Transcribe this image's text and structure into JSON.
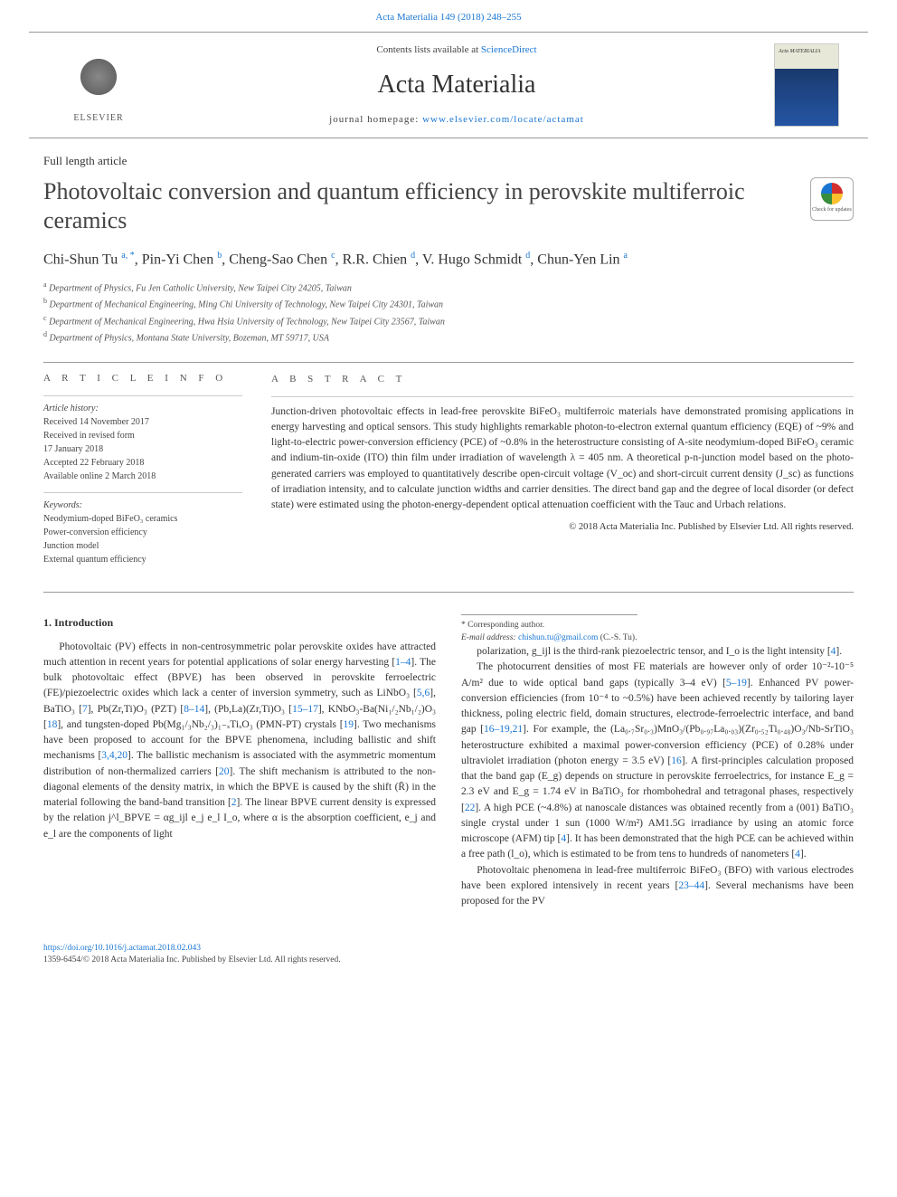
{
  "citation": "Acta Materialia 149 (2018) 248–255",
  "header": {
    "contents_prefix": "Contents lists available at ",
    "contents_link": "ScienceDirect",
    "journal_name": "Acta Materialia",
    "homepage_prefix": "journal homepage: ",
    "homepage_url": "www.elsevier.com/locate/actamat",
    "publisher": "ELSEVIER"
  },
  "article": {
    "type": "Full length article",
    "title": "Photovoltaic conversion and quantum efficiency in perovskite multiferroic ceramics",
    "crossmark_label": "Check for updates",
    "authors_html": "Chi-Shun Tu <sup>a, *</sup>, Pin-Yi Chen <sup>b</sup>, Cheng-Sao Chen <sup>c</sup>, R.R. Chien <sup>d</sup>, V. Hugo Schmidt <sup>d</sup>, Chun-Yen Lin <sup>a</sup>",
    "affiliations": [
      {
        "sup": "a",
        "text": "Department of Physics, Fu Jen Catholic University, New Taipei City 24205, Taiwan"
      },
      {
        "sup": "b",
        "text": "Department of Mechanical Engineering, Ming Chi University of Technology, New Taipei City 24301, Taiwan"
      },
      {
        "sup": "c",
        "text": "Department of Mechanical Engineering, Hwa Hsia University of Technology, New Taipei City 23567, Taiwan"
      },
      {
        "sup": "d",
        "text": "Department of Physics, Montana State University, Bozeman, MT 59717, USA"
      }
    ]
  },
  "info": {
    "label": "A R T I C L E   I N F O",
    "history_label": "Article history:",
    "history": [
      "Received 14 November 2017",
      "Received in revised form",
      "17 January 2018",
      "Accepted 22 February 2018",
      "Available online 2 March 2018"
    ],
    "keywords_label": "Keywords:",
    "keywords": [
      "Neodymium-doped BiFeO₃ ceramics",
      "Power-conversion efficiency",
      "Junction model",
      "External quantum efficiency"
    ]
  },
  "abstract": {
    "label": "A B S T R A C T",
    "text": "Junction-driven photovoltaic effects in lead-free perovskite BiFeO₃ multiferroic materials have demonstrated promising applications in energy harvesting and optical sensors. This study highlights remarkable photon-to-electron external quantum efficiency (EQE) of ~9% and light-to-electric power-conversion efficiency (PCE) of ~0.8% in the heterostructure consisting of A-site neodymium-doped BiFeO₃ ceramic and indium-tin-oxide (ITO) thin film under irradiation of wavelength λ = 405 nm. A theoretical p-n-junction model based on the photo-generated carriers was employed to quantitatively describe open-circuit voltage (V_oc) and short-circuit current density (J_sc) as functions of irradiation intensity, and to calculate junction widths and carrier densities. The direct band gap and the degree of local disorder (or defect state) were estimated using the photon-energy-dependent optical attenuation coefficient with the Tauc and Urbach relations.",
    "copyright": "© 2018 Acta Materialia Inc. Published by Elsevier Ltd. All rights reserved."
  },
  "intro": {
    "heading": "1. Introduction",
    "para1": "Photovoltaic (PV) effects in non-centrosymmetric polar perovskite oxides have attracted much attention in recent years for potential applications of solar energy harvesting [1–4]. The bulk photovoltaic effect (BPVE) has been observed in perovskite ferroelectric (FE)/piezoelectric oxides which lack a center of inversion symmetry, such as LiNbO₃ [5,6], BaTiO₃ [7], Pb(Zr,Ti)O₃ (PZT) [8–14], (Pb,La)(Zr,Ti)O₃ [15–17], KNbO₃-Ba(Ni₁/₂Nb₁/₂)O₃ [18], and tungsten-doped Pb(Mg₁/₃Nb₂/₃)₁₋ₓTiₓO₃ (PMN-PT) crystals [19]. Two mechanisms have been proposed to account for the BPVE phenomena, including ballistic and shift mechanisms [3,4,20]. The ballistic mechanism is associated with the asymmetric momentum distribution of non-thermalized carriers [20]. The shift mechanism is attributed to the non-diagonal elements of the density matrix, in which the BPVE is caused by the shift (R̄) in the material following the band-band transition [2]. The linear BPVE current density is expressed by the relation j^l_BPVE = αg_ijl e_j e_l I_o, where α is the absorption coefficient, e_j and e_l are the components of light",
    "para2": "polarization, g_ijl is the third-rank piezoelectric tensor, and I_o is the light intensity [4].",
    "para3": "The photocurrent densities of most FE materials are however only of order 10⁻²-10⁻⁵ A/m² due to wide optical band gaps (typically 3–4 eV) [5–19]. Enhanced PV power-conversion efficiencies (from 10⁻⁴ to ~0.5%) have been achieved recently by tailoring layer thickness, poling electric field, domain structures, electrode-ferroelectric interface, and band gap [16–19,21]. For example, the (La₀.₇Sr₀.₃)MnO₃/(Pb₀.₉₇La₀.₀₃)(Zr₀.₅₂Ti₀.₄₈)O₃/Nb-SrTiO₃ heterostructure exhibited a maximal power-conversion efficiency (PCE) of 0.28% under ultraviolet irradiation (photon energy = 3.5 eV) [16]. A first-principles calculation proposed that the band gap (E_g) depends on structure in perovskite ferroelectrics, for instance E_g = 2.3 eV and E_g = 1.74 eV in BaTiO₃ for rhombohedral and tetragonal phases, respectively [22]. A high PCE (~4.8%) at nanoscale distances was obtained recently from a (001) BaTiO₃ single crystal under 1 sun (1000 W/m²) AM1.5G irradiance by using an atomic force microscope (AFM) tip [4]. It has been demonstrated that the high PCE can be achieved within a free path (l_o), which is estimated to be from tens to hundreds of nanometers [4].",
    "para4": "Photovoltaic phenomena in lead-free multiferroic BiFeO₃ (BFO) with various electrodes have been explored intensively in recent years [23–44]. Several mechanisms have been proposed for the PV"
  },
  "footnote": {
    "corr": "* Corresponding author.",
    "email_label": "E-mail address: ",
    "email": "chishun.tu@gmail.com",
    "email_author": " (C.-S. Tu)."
  },
  "bottom": {
    "doi": "https://doi.org/10.1016/j.actamat.2018.02.043",
    "issn_line": "1359-6454/© 2018 Acta Materialia Inc. Published by Elsevier Ltd. All rights reserved."
  },
  "colors": {
    "link": "#1976d2",
    "text": "#333333",
    "rule": "#999999",
    "muted": "#555555"
  }
}
